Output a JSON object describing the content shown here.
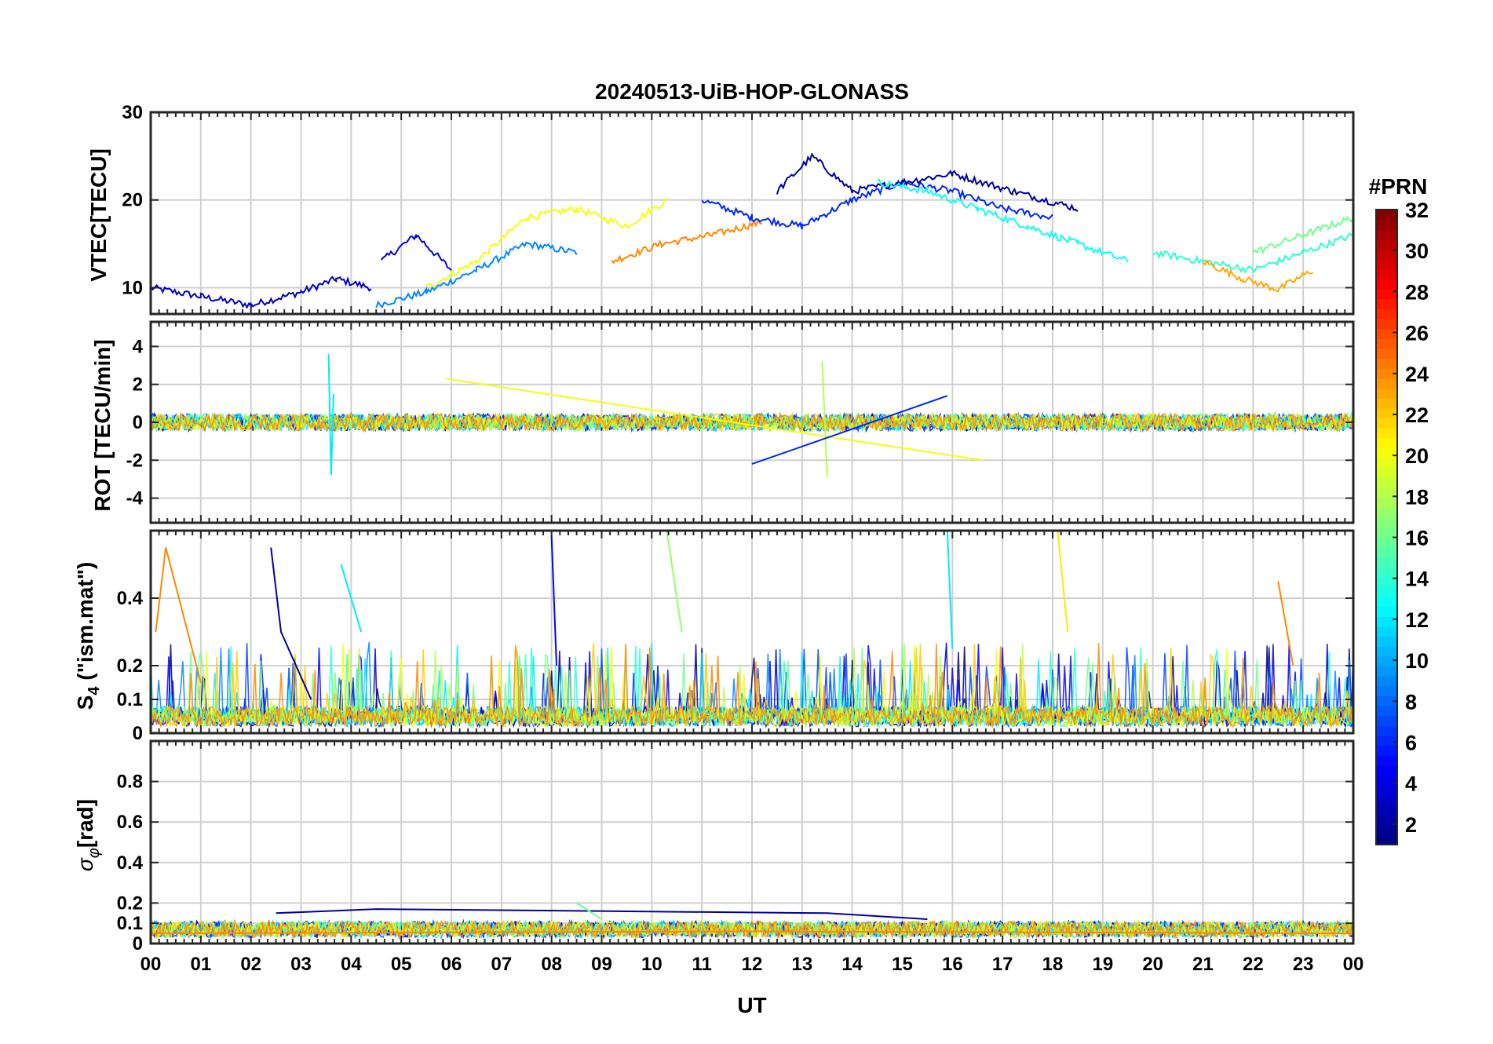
{
  "chart_data": [
    {
      "type": "line",
      "title": "20240513-UiB-HOP-GLONASS",
      "ylabel": "VTEC[TECU]",
      "xlabel": "",
      "ylim": [
        7,
        30
      ],
      "yticks": [
        10,
        20,
        30
      ],
      "xlim": [
        0,
        24
      ],
      "grid": true,
      "series": [
        {
          "name": "PRN 3",
          "prn": 3,
          "x": [
            0,
            1,
            2,
            3,
            3.7,
            4.4
          ],
          "values": [
            10,
            9,
            8,
            9.5,
            11,
            10
          ]
        },
        {
          "name": "PRN 4",
          "prn": 4,
          "x": [
            4.6,
            5.3,
            6.0
          ],
          "values": [
            13,
            16,
            12
          ]
        },
        {
          "name": "PRN 9",
          "prn": 9,
          "x": [
            4.5,
            5.5,
            6.5,
            7.5,
            8.5
          ],
          "values": [
            8,
            9.5,
            12,
            15,
            14
          ]
        },
        {
          "name": "PRN 20",
          "prn": 20,
          "x": [
            5.5,
            6.5,
            7.5,
            8.5,
            9.5,
            10.3
          ],
          "values": [
            10,
            13,
            18,
            19,
            17,
            20
          ]
        },
        {
          "name": "PRN 24",
          "prn": 24,
          "x": [
            9.2,
            10.2,
            11.2,
            12.2
          ],
          "values": [
            13,
            15,
            16,
            17.5
          ]
        },
        {
          "name": "PRN 6",
          "prn": 6,
          "x": [
            11,
            12,
            13,
            14,
            15,
            16,
            17,
            18
          ],
          "values": [
            20,
            18,
            17,
            20,
            22,
            21,
            19,
            18
          ]
        },
        {
          "name": "PRN 2",
          "prn": 2,
          "x": [
            12.5,
            13.2,
            14,
            15,
            16,
            17.2,
            18.5
          ],
          "values": [
            21,
            25,
            21,
            22,
            23,
            21,
            19
          ]
        },
        {
          "name": "PRN 13",
          "prn": 13,
          "x": [
            14.5,
            15.5,
            16.5,
            17.5,
            18.5,
            19.5
          ],
          "values": [
            22,
            21,
            19,
            17,
            15,
            13
          ]
        },
        {
          "name": "PRN 14",
          "prn": 14,
          "x": [
            20,
            21,
            22,
            23,
            24
          ],
          "values": [
            14,
            13,
            12,
            14,
            16
          ]
        },
        {
          "name": "PRN 23",
          "prn": 23,
          "x": [
            21,
            21.8,
            22.5,
            23.2
          ],
          "values": [
            13,
            11,
            9.8,
            12
          ]
        },
        {
          "name": "PRN 16",
          "prn": 16,
          "x": [
            22,
            23,
            23.5,
            24
          ],
          "values": [
            14,
            16,
            17,
            18
          ]
        }
      ]
    },
    {
      "type": "line",
      "ylabel": "ROT [TECU/min]",
      "ylim": [
        -5.3,
        5.3
      ],
      "yticks": [
        -4,
        -2,
        0,
        2,
        4
      ],
      "xlim": [
        0,
        24
      ],
      "grid": true,
      "series": [
        {
          "name": "PRN 12",
          "prn": 12,
          "x": [
            3.55,
            3.6,
            3.65
          ],
          "values": [
            3.6,
            -2.8,
            1.5
          ]
        },
        {
          "name": "PRN 18",
          "prn": 18,
          "x": [
            13.4,
            13.5
          ],
          "values": [
            3.2,
            -2.9
          ]
        },
        {
          "name": "PRN 20",
          "prn": 20,
          "x": [
            5.9,
            16.6
          ],
          "values": [
            2.3,
            -2.0
          ]
        },
        {
          "name": "PRN 6",
          "prn": 6,
          "x": [
            12.0,
            15.9
          ],
          "values": [
            -2.2,
            1.4
          ]
        }
      ]
    },
    {
      "type": "line",
      "ylabel": "S4 (\"ism.mat\")",
      "ylabel_main": "S",
      "ylabel_sub": "4",
      "ylabel_rest": " (\"ism.mat\")",
      "ylim": [
        0,
        0.6
      ],
      "yticks": [
        0,
        0.1,
        0.2,
        0.4
      ],
      "ytick_labels": [
        "0",
        "0.1",
        "0.2",
        "0.4"
      ],
      "xlim": [
        0,
        24
      ],
      "grid": true,
      "series": [
        {
          "name": "PRN 24",
          "prn": 24,
          "x": [
            0.1,
            0.3,
            1.0
          ],
          "values": [
            0.3,
            0.55,
            0.15
          ]
        },
        {
          "name": "PRN 2",
          "prn": 2,
          "x": [
            2.4,
            2.6,
            3.2
          ],
          "values": [
            0.55,
            0.3,
            0.1
          ]
        },
        {
          "name": "PRN 12",
          "prn": 12,
          "x": [
            3.8,
            4.2
          ],
          "values": [
            0.5,
            0.3
          ]
        },
        {
          "name": "PRN 5",
          "prn": 5,
          "x": [
            8.0,
            8.1
          ],
          "values": [
            0.58,
            0.2
          ]
        },
        {
          "name": "PRN 17",
          "prn": 17,
          "x": [
            10.3,
            10.6
          ],
          "values": [
            0.6,
            0.3
          ]
        },
        {
          "name": "PRN 12",
          "prn": 12,
          "x": [
            15.9,
            16.0
          ],
          "values": [
            0.6,
            0.25
          ]
        },
        {
          "name": "PRN 21",
          "prn": 21,
          "x": [
            18.1,
            18.3
          ],
          "values": [
            0.6,
            0.3
          ]
        },
        {
          "name": "PRN 24",
          "prn": 24,
          "x": [
            22.5,
            22.8
          ],
          "values": [
            0.45,
            0.2
          ]
        }
      ]
    },
    {
      "type": "line",
      "ylabel": "σφ[rad]",
      "ylabel_main": "σ",
      "ylabel_sub": "φ",
      "ylabel_rest": "[rad]",
      "ylim": [
        0,
        1
      ],
      "yticks": [
        0,
        0.1,
        0.2,
        0.4,
        0.6,
        0.8
      ],
      "ytick_labels": [
        "0",
        "0.1",
        "0.2",
        "0.4",
        "0.6",
        "0.8"
      ],
      "xlabel": "UT",
      "xticks": [
        0,
        1,
        2,
        3,
        4,
        5,
        6,
        7,
        8,
        9,
        10,
        11,
        12,
        13,
        14,
        15,
        16,
        17,
        18,
        19,
        20,
        21,
        22,
        23,
        24
      ],
      "xtick_labels": [
        "00",
        "01",
        "02",
        "03",
        "04",
        "05",
        "06",
        "07",
        "08",
        "09",
        "10",
        "11",
        "12",
        "13",
        "14",
        "15",
        "16",
        "17",
        "18",
        "19",
        "20",
        "21",
        "22",
        "23",
        "00"
      ],
      "xlim": [
        0,
        24
      ],
      "grid": true,
      "series": [
        {
          "name": "PRN 2",
          "prn": 2,
          "x": [
            2.5,
            4.5,
            13.5,
            15.5
          ],
          "values": [
            0.15,
            0.17,
            0.15,
            0.12
          ]
        },
        {
          "name": "PRN 16",
          "prn": 16,
          "x": [
            8.5,
            9.0
          ],
          "values": [
            0.2,
            0.12
          ]
        },
        {
          "name": "PRN 24",
          "prn": 24,
          "x": [
            0,
            12,
            24
          ],
          "values": [
            0.05,
            0.06,
            0.05
          ]
        }
      ]
    }
  ],
  "colorbar": {
    "label": "#PRN",
    "range": [
      1,
      32
    ],
    "ticks": [
      2,
      4,
      6,
      8,
      10,
      12,
      14,
      16,
      18,
      20,
      22,
      24,
      26,
      28,
      30,
      32
    ],
    "tick_labels": [
      "2",
      "4",
      "6",
      "8",
      "10",
      "12",
      "14",
      "16",
      "18",
      "20",
      "22",
      "24",
      "26",
      "28",
      "30",
      "32"
    ],
    "colormap": "jet"
  }
}
